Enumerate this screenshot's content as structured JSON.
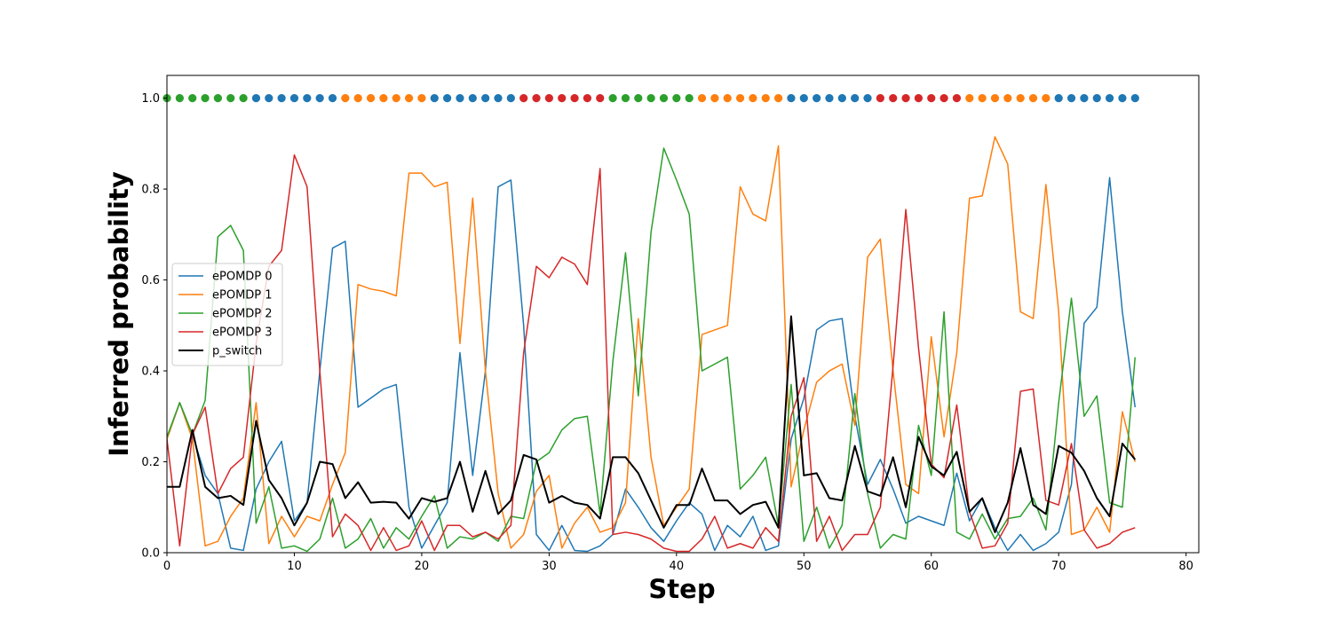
{
  "chart_data": {
    "type": "line",
    "title": "",
    "xlabel": "Step",
    "ylabel": "Inferred probability",
    "xlim": [
      0,
      81
    ],
    "ylim": [
      0,
      1.05
    ],
    "x_ticks": [
      0,
      10,
      20,
      30,
      40,
      50,
      60,
      70,
      80
    ],
    "y_ticks": [
      0.0,
      0.2,
      0.4,
      0.6,
      0.8,
      1.0
    ],
    "x_tick_labels": [
      "0",
      "10",
      "20",
      "30",
      "40",
      "50",
      "60",
      "70",
      "80"
    ],
    "y_tick_labels": [
      "0.0",
      "0.2",
      "0.4",
      "0.6",
      "0.8",
      "1.0"
    ],
    "grid": false,
    "legend_position": "center-left",
    "series": [
      {
        "name": "ePOMDP 0",
        "color": "#1f77b4",
        "values": [
          0.25,
          0.33,
          0.26,
          0.17,
          0.13,
          0.01,
          0.005,
          0.14,
          0.2,
          0.245,
          0.07,
          0.11,
          0.4,
          0.67,
          0.685,
          0.32,
          0.34,
          0.36,
          0.37,
          0.1,
          0.01,
          0.06,
          0.11,
          0.44,
          0.17,
          0.4,
          0.805,
          0.82,
          0.5,
          0.04,
          0.005,
          0.06,
          0.005,
          0.003,
          0.015,
          0.04,
          0.14,
          0.1,
          0.055,
          0.025,
          0.07,
          0.11,
          0.085,
          0.005,
          0.06,
          0.035,
          0.08,
          0.005,
          0.015,
          0.25,
          0.34,
          0.49,
          0.51,
          0.515,
          0.3,
          0.15,
          0.205,
          0.14,
          0.065,
          0.08,
          0.07,
          0.06,
          0.175,
          0.07,
          0.12,
          0.055,
          0.005,
          0.04,
          0.005,
          0.02,
          0.045,
          0.15,
          0.505,
          0.54,
          0.825,
          0.53,
          0.32
        ]
      },
      {
        "name": "ePOMDP 1",
        "color": "#ff7f0e",
        "values": [
          0.25,
          0.33,
          0.25,
          0.015,
          0.025,
          0.08,
          0.12,
          0.33,
          0.02,
          0.08,
          0.035,
          0.08,
          0.07,
          0.15,
          0.22,
          0.59,
          0.58,
          0.575,
          0.565,
          0.835,
          0.835,
          0.805,
          0.815,
          0.46,
          0.78,
          0.4,
          0.13,
          0.01,
          0.04,
          0.135,
          0.17,
          0.01,
          0.065,
          0.1,
          0.045,
          0.055,
          0.11,
          0.515,
          0.21,
          0.06,
          0.1,
          0.14,
          0.48,
          0.49,
          0.5,
          0.805,
          0.745,
          0.73,
          0.895,
          0.145,
          0.27,
          0.375,
          0.4,
          0.415,
          0.28,
          0.65,
          0.69,
          0.4,
          0.15,
          0.13,
          0.475,
          0.255,
          0.44,
          0.78,
          0.785,
          0.915,
          0.855,
          0.53,
          0.515,
          0.81,
          0.53,
          0.04,
          0.05,
          0.1,
          0.045,
          0.31,
          0.2
        ]
      },
      {
        "name": "ePOMDP 2",
        "color": "#2ca02c",
        "values": [
          0.255,
          0.33,
          0.26,
          0.335,
          0.695,
          0.72,
          0.665,
          0.065,
          0.145,
          0.01,
          0.015,
          0.003,
          0.03,
          0.12,
          0.01,
          0.03,
          0.075,
          0.01,
          0.055,
          0.03,
          0.08,
          0.125,
          0.01,
          0.035,
          0.03,
          0.045,
          0.025,
          0.08,
          0.075,
          0.2,
          0.22,
          0.27,
          0.295,
          0.3,
          0.085,
          0.42,
          0.66,
          0.345,
          0.705,
          0.89,
          0.82,
          0.745,
          0.4,
          0.415,
          0.43,
          0.14,
          0.17,
          0.21,
          0.06,
          0.37,
          0.025,
          0.1,
          0.01,
          0.06,
          0.35,
          0.13,
          0.01,
          0.04,
          0.03,
          0.28,
          0.17,
          0.53,
          0.045,
          0.03,
          0.085,
          0.03,
          0.075,
          0.08,
          0.12,
          0.05,
          0.33,
          0.56,
          0.3,
          0.345,
          0.11,
          0.1,
          0.43
        ]
      },
      {
        "name": "ePOMDP 3",
        "color": "#d62728",
        "values": [
          0.25,
          0.015,
          0.26,
          0.32,
          0.13,
          0.185,
          0.21,
          0.46,
          0.63,
          0.665,
          0.875,
          0.805,
          0.4,
          0.035,
          0.085,
          0.06,
          0.005,
          0.055,
          0.005,
          0.015,
          0.07,
          0.005,
          0.06,
          0.06,
          0.035,
          0.045,
          0.03,
          0.06,
          0.44,
          0.63,
          0.605,
          0.65,
          0.635,
          0.59,
          0.845,
          0.04,
          0.045,
          0.04,
          0.03,
          0.01,
          0.003,
          0.003,
          0.03,
          0.08,
          0.01,
          0.02,
          0.01,
          0.055,
          0.025,
          0.3,
          0.385,
          0.025,
          0.08,
          0.005,
          0.04,
          0.04,
          0.1,
          0.41,
          0.755,
          0.45,
          0.195,
          0.165,
          0.325,
          0.09,
          0.01,
          0.015,
          0.065,
          0.355,
          0.36,
          0.115,
          0.105,
          0.24,
          0.05,
          0.01,
          0.02,
          0.045,
          0.055
        ]
      },
      {
        "name": "p_switch",
        "color": "#000000",
        "values": [
          0.145,
          0.145,
          0.27,
          0.145,
          0.12,
          0.125,
          0.105,
          0.29,
          0.16,
          0.12,
          0.06,
          0.11,
          0.2,
          0.195,
          0.12,
          0.155,
          0.11,
          0.112,
          0.11,
          0.075,
          0.12,
          0.112,
          0.12,
          0.2,
          0.09,
          0.18,
          0.085,
          0.115,
          0.215,
          0.205,
          0.11,
          0.125,
          0.11,
          0.105,
          0.075,
          0.21,
          0.21,
          0.175,
          0.115,
          0.055,
          0.105,
          0.105,
          0.185,
          0.115,
          0.115,
          0.085,
          0.105,
          0.112,
          0.055,
          0.52,
          0.17,
          0.175,
          0.12,
          0.115,
          0.235,
          0.135,
          0.125,
          0.21,
          0.1,
          0.255,
          0.19,
          0.17,
          0.222,
          0.09,
          0.12,
          0.045,
          0.11,
          0.23,
          0.105,
          0.085,
          0.235,
          0.22,
          0.18,
          0.12,
          0.08,
          0.24,
          0.205
        ]
      }
    ],
    "true_mode_markers": {
      "y": 1.0,
      "segments": [
        {
          "from": 0,
          "to": 6,
          "color": "#2ca02c"
        },
        {
          "from": 7,
          "to": 13,
          "color": "#1f77b4"
        },
        {
          "from": 14,
          "to": 20,
          "color": "#ff7f0e"
        },
        {
          "from": 21,
          "to": 27,
          "color": "#1f77b4"
        },
        {
          "from": 28,
          "to": 34,
          "color": "#d62728"
        },
        {
          "from": 35,
          "to": 41,
          "color": "#2ca02c"
        },
        {
          "from": 42,
          "to": 48,
          "color": "#ff7f0e"
        },
        {
          "from": 49,
          "to": 55,
          "color": "#1f77b4"
        },
        {
          "from": 56,
          "to": 62,
          "color": "#d62728"
        },
        {
          "from": 63,
          "to": 69,
          "color": "#ff7f0e"
        },
        {
          "from": 70,
          "to": 76,
          "color": "#1f77b4"
        }
      ]
    }
  }
}
